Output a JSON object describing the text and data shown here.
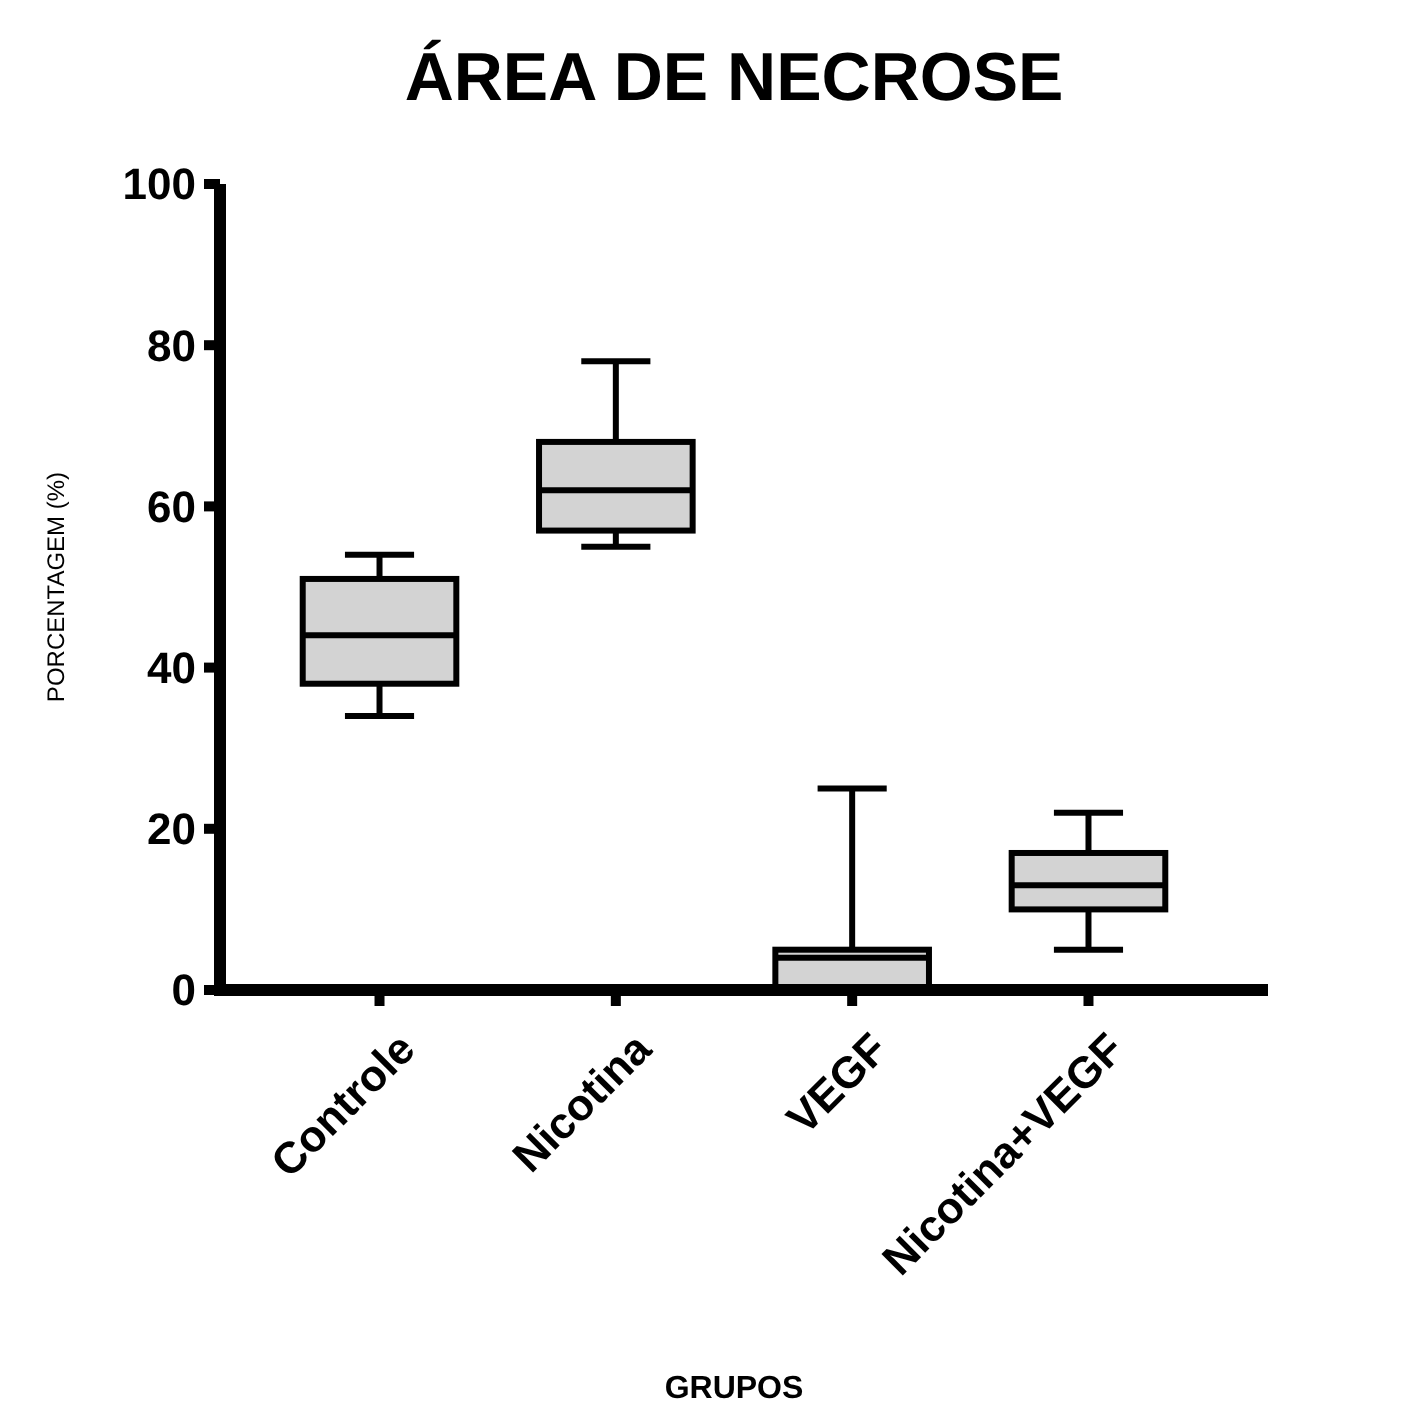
{
  "chart_data": {
    "type": "box",
    "title": "ÁREA DE NECROSE",
    "xlabel": "GRUPOS",
    "ylabel": "PORCENTAGEM (%)",
    "categories": [
      "Controle",
      "Nicotina",
      "VEGF",
      "Nicotina+VEGF"
    ],
    "boxes": [
      {
        "low": 34,
        "q1": 38,
        "median": 44,
        "q3": 51,
        "high": 54
      },
      {
        "low": 55,
        "q1": 57,
        "median": 62,
        "q3": 68,
        "high": 78
      },
      {
        "low": 0,
        "q1": 0,
        "median": 4,
        "q3": 5,
        "high": 25
      },
      {
        "low": 5,
        "q1": 10,
        "median": 13,
        "q3": 17,
        "high": 22
      }
    ],
    "color": "#d3d3d3",
    "ylim": [
      0,
      100
    ],
    "yticks": [
      0,
      20,
      40,
      60,
      80,
      100
    ],
    "grid": false
  }
}
